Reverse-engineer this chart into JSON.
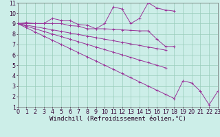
{
  "background_color": "#cceee8",
  "line_color": "#993399",
  "grid_color": "#99ccbb",
  "xlabel": "Windchill (Refroidissement éolien,°C)",
  "xlabel_fontsize": 6.5,
  "tick_fontsize": 5.8,
  "xlim": [
    0,
    23
  ],
  "ylim": [
    1,
    11
  ],
  "xticks": [
    0,
    1,
    2,
    3,
    4,
    5,
    6,
    7,
    8,
    9,
    10,
    11,
    12,
    13,
    14,
    15,
    16,
    17,
    18,
    19,
    20,
    21,
    22,
    23
  ],
  "yticks": [
    1,
    2,
    3,
    4,
    5,
    6,
    7,
    8,
    9,
    10,
    11
  ],
  "series": [
    {
      "x": [
        0,
        1,
        2,
        3,
        4,
        5,
        6,
        7,
        8,
        9,
        10,
        11,
        12,
        13,
        14,
        15,
        16,
        17,
        18
      ],
      "y": [
        9.0,
        9.1,
        9.0,
        9.0,
        9.5,
        9.3,
        9.3,
        8.9,
        8.85,
        8.5,
        9.0,
        10.6,
        10.4,
        9.0,
        9.5,
        11.0,
        10.5,
        10.3,
        10.2
      ]
    },
    {
      "x": [
        0,
        1,
        2,
        3,
        4,
        5,
        6,
        7,
        8,
        9,
        10,
        11,
        12,
        13,
        14,
        15,
        16,
        17,
        18
      ],
      "y": [
        9.0,
        9.0,
        9.0,
        9.0,
        9.0,
        9.0,
        8.8,
        8.75,
        8.5,
        8.5,
        8.5,
        8.45,
        8.4,
        8.35,
        8.3,
        8.3,
        7.5,
        6.8,
        6.8
      ]
    },
    {
      "x": [
        0,
        1,
        2,
        3,
        4,
        5,
        6,
        7,
        8,
        9,
        10,
        11,
        12,
        13,
        14,
        15,
        16,
        17
      ],
      "y": [
        9.0,
        8.85,
        8.7,
        8.55,
        8.4,
        8.25,
        8.1,
        7.95,
        7.8,
        7.65,
        7.5,
        7.35,
        7.2,
        7.05,
        6.9,
        6.75,
        6.6,
        6.45
      ]
    },
    {
      "x": [
        0,
        1,
        2,
        3,
        4,
        5,
        6,
        7,
        8,
        9,
        10,
        11,
        12,
        13,
        14,
        15,
        16,
        17
      ],
      "y": [
        9.0,
        8.75,
        8.5,
        8.25,
        8.0,
        7.75,
        7.5,
        7.25,
        7.0,
        6.75,
        6.5,
        6.25,
        6.0,
        5.75,
        5.5,
        5.25,
        5.0,
        4.75
      ]
    },
    {
      "x": [
        0,
        1,
        2,
        3,
        4,
        5,
        6,
        7,
        8,
        9,
        10,
        11,
        12,
        13,
        14,
        15,
        16,
        17,
        18,
        19,
        20,
        21,
        22,
        23
      ],
      "y": [
        9.0,
        8.6,
        8.2,
        7.8,
        7.4,
        7.0,
        6.6,
        6.2,
        5.8,
        5.4,
        5.0,
        4.6,
        4.2,
        3.8,
        3.4,
        3.0,
        2.6,
        2.2,
        1.8,
        3.5,
        3.3,
        2.5,
        1.2,
        2.5
      ]
    }
  ]
}
